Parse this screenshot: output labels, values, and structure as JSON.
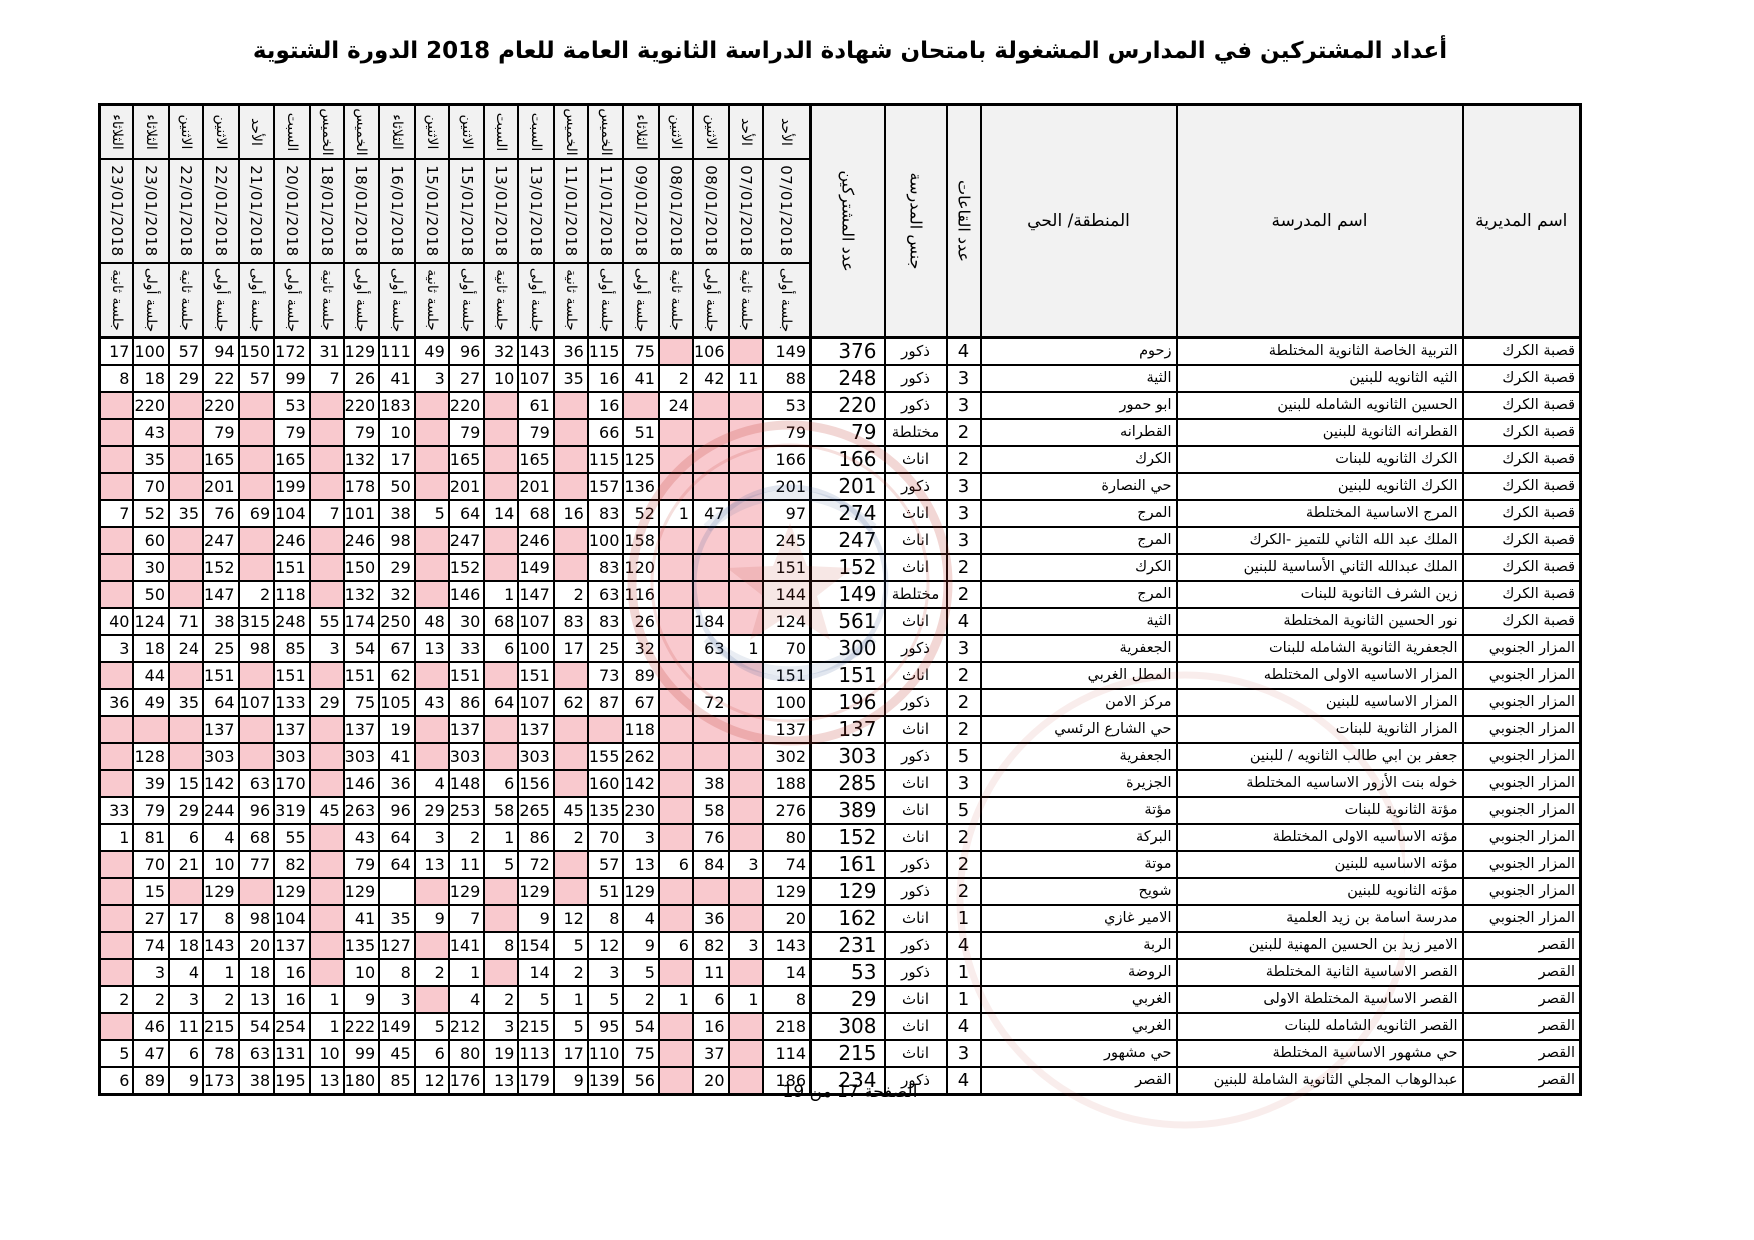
{
  "title": "أعداد المشتركين في المدارس المشغولة بامتحان شهادة الدراسة الثانوية العامة للعام 2018 الدورة الشتوية",
  "footer": "الصفحة 17 من 19",
  "colors": {
    "pink_empty_cell": "#f9c9ce",
    "header_bg": "#f2f2f2",
    "border": "#000000",
    "stamp_red": "#c0392b",
    "stamp_blue": "#2a4b8d"
  },
  "header": {
    "directorate": "اسم المديرية",
    "school": "اسم المدرسة",
    "district": "المنطقة/ الحي",
    "halls": "عدد القاعات",
    "gender": "جنس المدرسة",
    "participants": "عدد المشتركين"
  },
  "date_columns": [
    {
      "day": "الأحد",
      "date": "07/01/2018",
      "session": "جلسة أولى"
    },
    {
      "day": "الأحد",
      "date": "07/01/2018",
      "session": "جلسة ثانية"
    },
    {
      "day": "الاثنين",
      "date": "08/01/2018",
      "session": "جلسة أولى"
    },
    {
      "day": "الاثنين",
      "date": "08/01/2018",
      "session": "جلسة ثانية"
    },
    {
      "day": "الثلاثاء",
      "date": "09/01/2018",
      "session": "جلسة أولى"
    },
    {
      "day": "الخميس",
      "date": "11/01/2018",
      "session": "جلسة أولى"
    },
    {
      "day": "الخميس",
      "date": "11/01/2018",
      "session": "جلسة ثانية"
    },
    {
      "day": "السبت",
      "date": "13/01/2018",
      "session": "جلسة أولى"
    },
    {
      "day": "السبت",
      "date": "13/01/2018",
      "session": "جلسة ثانية"
    },
    {
      "day": "الاثنين",
      "date": "15/01/2018",
      "session": "جلسة أولى"
    },
    {
      "day": "الاثنين",
      "date": "15/01/2018",
      "session": "جلسة ثانية"
    },
    {
      "day": "الثلاثاء",
      "date": "16/01/2018",
      "session": "جلسة أولى"
    },
    {
      "day": "الخميس",
      "date": "18/01/2018",
      "session": "جلسة أولى"
    },
    {
      "day": "الخميس",
      "date": "18/01/2018",
      "session": "جلسة ثانية"
    },
    {
      "day": "السبت",
      "date": "20/01/2018",
      "session": "جلسة أولى"
    },
    {
      "day": "الأحد",
      "date": "21/01/2018",
      "session": "جلسة أولى"
    },
    {
      "day": "الاثنين",
      "date": "22/01/2018",
      "session": "جلسة أولى"
    },
    {
      "day": "الاثنين",
      "date": "22/01/2018",
      "session": "جلسة ثانية"
    },
    {
      "day": "الثلاثاء",
      "date": "23/01/2018",
      "session": "جلسة أولى"
    },
    {
      "day": "الثلاثاء",
      "date": "23/01/2018",
      "session": "جلسة ثانية"
    }
  ],
  "empty_pink_marker": "P",
  "rows": [
    {
      "directorate": "قصبة الكرك",
      "school": "التربية الخاصة الثانوية المختلطة",
      "district": "زحوم",
      "halls": 4,
      "gender": "ذكور",
      "participants": 376,
      "cells": [
        149,
        "P",
        106,
        "P",
        75,
        115,
        36,
        143,
        32,
        96,
        49,
        111,
        129,
        31,
        172,
        150,
        94,
        57,
        100,
        17
      ]
    },
    {
      "directorate": "قصبة الكرك",
      "school": "الثيه الثانويه للبنين",
      "district": "الثية",
      "halls": 3,
      "gender": "ذكور",
      "participants": 248,
      "cells": [
        88,
        11,
        42,
        2,
        41,
        16,
        35,
        107,
        10,
        27,
        3,
        41,
        26,
        7,
        99,
        57,
        22,
        29,
        18,
        8
      ]
    },
    {
      "directorate": "قصبة الكرك",
      "school": "الحسين الثانويه الشامله للبنين",
      "district": "ابو حمور",
      "halls": 3,
      "gender": "ذكور",
      "participants": 220,
      "cells": [
        53,
        "P",
        "P",
        24,
        "P",
        16,
        "P",
        61,
        "P",
        220,
        "P",
        183,
        220,
        "P",
        53,
        "P",
        220,
        "P",
        220,
        "P"
      ]
    },
    {
      "directorate": "قصبة الكرك",
      "school": "القطرانه الثانوية للبنين",
      "district": "القطرانه",
      "halls": 2,
      "gender": "مختلطة",
      "participants": 79,
      "cells": [
        79,
        "P",
        "P",
        "P",
        51,
        66,
        "P",
        79,
        "P",
        79,
        "P",
        10,
        79,
        "P",
        79,
        "P",
        79,
        "P",
        43,
        "P"
      ]
    },
    {
      "directorate": "قصبة الكرك",
      "school": "الكرك الثانويه للبنات",
      "district": "الكرك",
      "halls": 2,
      "gender": "اناث",
      "participants": 166,
      "cells": [
        166,
        "P",
        "P",
        "P",
        125,
        115,
        "P",
        165,
        "P",
        165,
        "P",
        17,
        132,
        "P",
        165,
        "P",
        165,
        "P",
        35,
        "P"
      ]
    },
    {
      "directorate": "قصبة الكرك",
      "school": "الكرك الثانويه للبنين",
      "district": "حي النصارة",
      "halls": 3,
      "gender": "ذكور",
      "participants": 201,
      "cells": [
        201,
        "P",
        "P",
        "P",
        136,
        157,
        "P",
        201,
        "P",
        201,
        "P",
        50,
        178,
        "P",
        199,
        "P",
        201,
        "P",
        70,
        "P"
      ]
    },
    {
      "directorate": "قصبة الكرك",
      "school": "المرج الاساسية المختلطة",
      "district": "المرج",
      "halls": 3,
      "gender": "اناث",
      "participants": 274,
      "cells": [
        97,
        "P",
        47,
        1,
        52,
        83,
        16,
        68,
        14,
        64,
        5,
        38,
        101,
        7,
        104,
        69,
        76,
        35,
        52,
        7
      ]
    },
    {
      "directorate": "قصبة الكرك",
      "school": "الملك عبد الله الثاني للتميز -الكرك",
      "district": "المرج",
      "halls": 3,
      "gender": "اناث",
      "participants": 247,
      "cells": [
        245,
        "P",
        "P",
        "P",
        158,
        100,
        "P",
        246,
        "P",
        247,
        "P",
        98,
        246,
        "P",
        246,
        "P",
        247,
        "P",
        60,
        "P"
      ]
    },
    {
      "directorate": "قصبة الكرك",
      "school": "الملك عبدالله الثاني الأساسية للبنين",
      "district": "الكرك",
      "halls": 2,
      "gender": "اناث",
      "participants": 152,
      "cells": [
        151,
        "P",
        "P",
        "P",
        120,
        83,
        "P",
        149,
        "P",
        152,
        "P",
        29,
        150,
        "P",
        151,
        "P",
        152,
        "P",
        30,
        "P"
      ]
    },
    {
      "directorate": "قصبة الكرك",
      "school": "زين الشرف الثانوية للبنات",
      "district": "المرج",
      "halls": 2,
      "gender": "مختلطة",
      "participants": 149,
      "cells": [
        144,
        "P",
        "P",
        "P",
        116,
        63,
        2,
        147,
        1,
        146,
        "P",
        32,
        132,
        "P",
        118,
        2,
        147,
        "P",
        50,
        "P"
      ]
    },
    {
      "directorate": "قصبة الكرك",
      "school": "نور الحسين الثانوية المختلطة",
      "district": "الثية",
      "halls": 4,
      "gender": "اناث",
      "participants": 561,
      "cells": [
        124,
        "P",
        184,
        "P",
        26,
        83,
        83,
        107,
        68,
        30,
        48,
        250,
        174,
        55,
        248,
        315,
        38,
        71,
        124,
        40
      ]
    },
    {
      "directorate": "المزار الجنوبي",
      "school": "الجعفرية الثانوية الشامله للبنات",
      "district": "الجعفرية",
      "halls": 3,
      "gender": "ذكور",
      "participants": 300,
      "cells": [
        70,
        1,
        63,
        "P",
        32,
        25,
        17,
        100,
        6,
        33,
        13,
        67,
        54,
        3,
        85,
        98,
        25,
        24,
        18,
        3
      ]
    },
    {
      "directorate": "المزار الجنوبي",
      "school": "المزار الاساسيه الاولى المختلطه",
      "district": "المطل الغربي",
      "halls": 2,
      "gender": "اناث",
      "participants": 151,
      "cells": [
        151,
        "P",
        "P",
        "P",
        89,
        73,
        "P",
        151,
        "P",
        151,
        "P",
        62,
        151,
        "P",
        151,
        "P",
        151,
        "P",
        44,
        "P"
      ]
    },
    {
      "directorate": "المزار الجنوبي",
      "school": "المزار الاساسيه للبنين",
      "district": "مركز الامن",
      "halls": 2,
      "gender": "ذكور",
      "participants": 196,
      "cells": [
        100,
        "P",
        72,
        "P",
        67,
        87,
        62,
        107,
        64,
        86,
        43,
        105,
        75,
        29,
        133,
        107,
        64,
        35,
        49,
        36
      ]
    },
    {
      "directorate": "المزار الجنوبي",
      "school": "المزار الثانوية للبنات",
      "district": "حي الشارع الرئسي",
      "halls": 2,
      "gender": "اناث",
      "participants": 137,
      "cells": [
        137,
        "P",
        "P",
        "P",
        118,
        "P",
        "P",
        137,
        "P",
        137,
        "P",
        19,
        137,
        "P",
        137,
        "P",
        137,
        "P",
        "P",
        "P"
      ]
    },
    {
      "directorate": "المزار الجنوبي",
      "school": "جعفر بن ابي طالب الثانويه / للبنين",
      "district": "الجعفرية",
      "halls": 5,
      "gender": "ذكور",
      "participants": 303,
      "cells": [
        302,
        "P",
        "P",
        "P",
        262,
        155,
        "P",
        303,
        "P",
        303,
        "P",
        41,
        303,
        "P",
        303,
        "P",
        303,
        "P",
        128,
        "P"
      ]
    },
    {
      "directorate": "المزار الجنوبي",
      "school": "خوله بنت الأزور الاساسيه المختلطة",
      "district": "الجزيرة",
      "halls": 3,
      "gender": "اناث",
      "participants": 285,
      "cells": [
        188,
        "P",
        38,
        "P",
        142,
        160,
        "P",
        156,
        6,
        148,
        4,
        36,
        146,
        "P",
        170,
        63,
        142,
        15,
        39,
        "P"
      ]
    },
    {
      "directorate": "المزار الجنوبي",
      "school": "مؤتة الثانوية للبنات",
      "district": "مؤتة",
      "halls": 5,
      "gender": "اناث",
      "participants": 389,
      "cells": [
        276,
        "P",
        58,
        "P",
        230,
        135,
        45,
        265,
        58,
        253,
        29,
        96,
        263,
        45,
        319,
        96,
        244,
        29,
        79,
        33
      ]
    },
    {
      "directorate": "المزار الجنوبي",
      "school": "مؤته الاساسيه الاولى المختلطة",
      "district": "البركة",
      "halls": 2,
      "gender": "اناث",
      "participants": 152,
      "cells": [
        80,
        "P",
        76,
        "P",
        3,
        70,
        2,
        86,
        1,
        2,
        3,
        64,
        43,
        "P",
        55,
        68,
        4,
        6,
        81,
        1
      ]
    },
    {
      "directorate": "المزار الجنوبي",
      "school": "مؤته الاساسيه للبنين",
      "district": "موتة",
      "halls": 2,
      "gender": "ذكور",
      "participants": 161,
      "cells": [
        74,
        3,
        84,
        6,
        13,
        57,
        "P",
        72,
        5,
        11,
        13,
        64,
        79,
        "P",
        82,
        77,
        10,
        21,
        70,
        "P"
      ]
    },
    {
      "directorate": "المزار الجنوبي",
      "school": "مؤته الثانويه للبنين",
      "district": "شويح",
      "halls": 2,
      "gender": "ذكور",
      "participants": 129,
      "cells": [
        129,
        "P",
        "P",
        "P",
        129,
        51,
        "P",
        129,
        "P",
        129,
        "P",
        "",
        129,
        "P",
        129,
        "P",
        129,
        "P",
        15,
        "P"
      ]
    },
    {
      "directorate": "المزار الجنوبي",
      "school": "مدرسة اسامة بن زيد العلمية",
      "district": "الامير غازي",
      "halls": 1,
      "gender": "اناث",
      "participants": 162,
      "cells": [
        20,
        "P",
        36,
        "P",
        4,
        8,
        12,
        9,
        "P",
        7,
        9,
        35,
        41,
        "P",
        104,
        98,
        8,
        17,
        27,
        "P"
      ]
    },
    {
      "directorate": "القصر",
      "school": "الامير زيد بن الحسين المهنية للبنين",
      "district": "الربة",
      "halls": 4,
      "gender": "ذكور",
      "participants": 231,
      "cells": [
        143,
        3,
        82,
        6,
        9,
        12,
        5,
        154,
        8,
        141,
        "P",
        127,
        135,
        "P",
        137,
        20,
        143,
        18,
        74,
        "P"
      ]
    },
    {
      "directorate": "القصر",
      "school": "القصر الاساسية الثانية المختلطة",
      "district": "الروضة",
      "halls": 1,
      "gender": "ذكور",
      "participants": 53,
      "cells": [
        14,
        "P",
        11,
        "P",
        5,
        3,
        2,
        14,
        "P",
        1,
        2,
        8,
        10,
        "P",
        16,
        18,
        1,
        4,
        3,
        "P"
      ]
    },
    {
      "directorate": "القصر",
      "school": "القصر الاساسية المختلطة الاولى",
      "district": "الغربي",
      "halls": 1,
      "gender": "اناث",
      "participants": 29,
      "cells": [
        8,
        1,
        6,
        1,
        2,
        5,
        1,
        5,
        2,
        4,
        "P",
        3,
        9,
        1,
        16,
        13,
        2,
        3,
        2,
        2
      ]
    },
    {
      "directorate": "القصر",
      "school": "القصر الثانويه الشامله للبنات",
      "district": "الغربي",
      "halls": 4,
      "gender": "اناث",
      "participants": 308,
      "cells": [
        218,
        "P",
        16,
        "P",
        54,
        95,
        5,
        215,
        3,
        212,
        5,
        149,
        222,
        1,
        254,
        54,
        215,
        11,
        46,
        "P"
      ]
    },
    {
      "directorate": "القصر",
      "school": "حي مشهور الاساسية المختلطة",
      "district": "حي مشهور",
      "halls": 3,
      "gender": "اناث",
      "participants": 215,
      "cells": [
        114,
        "P",
        37,
        "P",
        75,
        110,
        17,
        113,
        19,
        80,
        6,
        45,
        99,
        10,
        131,
        63,
        78,
        6,
        47,
        5
      ]
    },
    {
      "directorate": "القصر",
      "school": "عبدالوهاب المجلي الثانوية الشاملة للبنين",
      "district": "القصر",
      "halls": 4,
      "gender": "ذكور",
      "participants": 234,
      "cells": [
        186,
        "P",
        20,
        "P",
        56,
        139,
        9,
        179,
        13,
        176,
        12,
        85,
        180,
        13,
        195,
        38,
        173,
        9,
        89,
        6
      ]
    }
  ]
}
